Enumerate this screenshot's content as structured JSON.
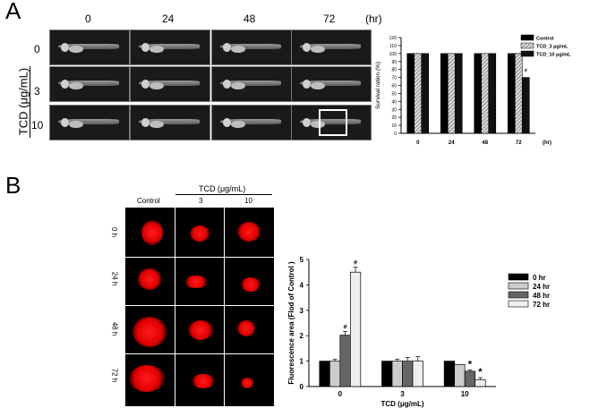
{
  "panelA": {
    "letter": "A",
    "time_labels": [
      "0",
      "24",
      "48",
      "72"
    ],
    "time_unit": "(hr)",
    "row_labels": [
      "0",
      "3",
      "10"
    ],
    "group_label": "TCD (μg/mL)"
  },
  "panelB": {
    "letter": "B",
    "group_label": "TCD (μg/mL)",
    "col_labels": [
      "Control",
      "3",
      "10"
    ],
    "row_labels": [
      "0 h",
      "24 h",
      "48 h",
      "72 h"
    ]
  },
  "colors": {
    "control": "#000000",
    "hatch": "#bbbbbb",
    "red": "#e00000"
  },
  "chart_data": [
    {
      "type": "bar",
      "categories": [
        "0",
        "24",
        "48",
        "72"
      ],
      "xunit": "(hr)",
      "ylabel": "Survival ration (%)",
      "ylim": [
        0,
        120
      ],
      "yticks": [
        0,
        10,
        20,
        30,
        40,
        50,
        60,
        70,
        80,
        90,
        100,
        110,
        120
      ],
      "legend_position": "top-right",
      "series": [
        {
          "name": "Control",
          "values": [
            100,
            100,
            100,
            100
          ],
          "fill": "#000000"
        },
        {
          "name": "TCD_3 μg/mL",
          "values": [
            100,
            100,
            100,
            100
          ],
          "fill": "hatch"
        },
        {
          "name": "TCD_10 μg/mL",
          "values": [
            100,
            100,
            100,
            70
          ],
          "fill": "#111111"
        }
      ],
      "annotations": [
        {
          "category": "72",
          "series": 2,
          "text": "*"
        }
      ]
    },
    {
      "type": "bar",
      "categories": [
        "0",
        "3",
        "10"
      ],
      "xlabel": "TCD (μg/mL)",
      "ylabel": "Fluorescence area (Flod of Control )",
      "ylim": [
        0,
        5
      ],
      "yticks": [
        0,
        1,
        2,
        3,
        4,
        5
      ],
      "legend_position": "right",
      "series": [
        {
          "name": "0 hr",
          "values": [
            1.0,
            1.0,
            1.0
          ],
          "errors": [
            0,
            0,
            0
          ],
          "fill": "#000000"
        },
        {
          "name": "24 hr",
          "values": [
            1.0,
            1.0,
            0.87
          ],
          "errors": [
            0.07,
            0.08,
            0
          ],
          "fill": "#cccccc"
        },
        {
          "name": "48 hr",
          "values": [
            2.02,
            1.0,
            0.6
          ],
          "errors": [
            0.15,
            0.15,
            0.05
          ],
          "fill": "#666666"
        },
        {
          "name": "72 hr",
          "values": [
            4.5,
            1.0,
            0.27
          ],
          "errors": [
            0.2,
            0.18,
            0.08
          ],
          "fill": "#eeeeee"
        }
      ],
      "annotations": [
        {
          "category": "0",
          "series": 2,
          "text": "#"
        },
        {
          "category": "0",
          "series": 3,
          "text": "#"
        },
        {
          "category": "10",
          "series": 2,
          "text": "*"
        },
        {
          "category": "10",
          "series": 3,
          "text": "*"
        }
      ]
    }
  ]
}
